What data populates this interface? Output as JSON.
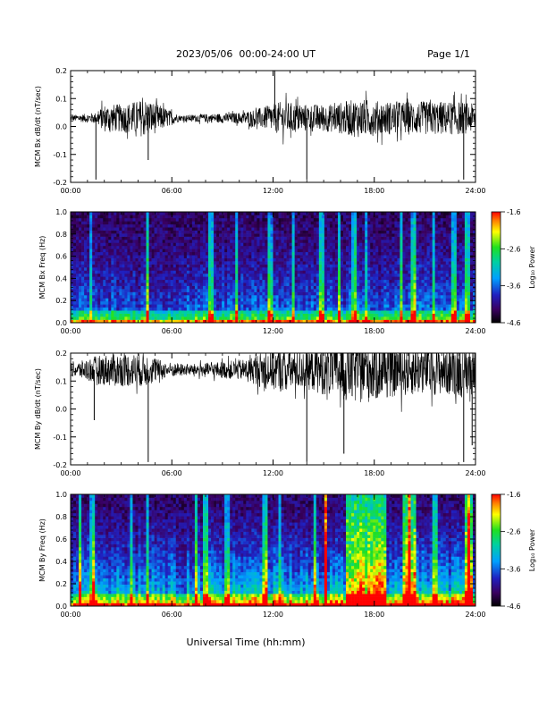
{
  "header": {
    "title": "2023/05/06  00:00-24:00 UT",
    "page": "Page 1/1"
  },
  "xlabel": "Universal Time (hh:mm)",
  "chart_data": [
    {
      "type": "line",
      "ylabel": "MCM Bx dB/dt (nT/sec)",
      "ylim": [
        -0.2,
        0.2
      ],
      "yticks": [
        "0.2",
        "0.1",
        "0.0",
        "-0.1",
        "-0.2"
      ],
      "xticks": [
        "00:00",
        "06:00",
        "12:00",
        "18:00",
        "24:00"
      ],
      "xlim_hours": [
        0,
        24
      ],
      "baseline": 0.03,
      "envelope": {
        "hours": [
          0,
          1.5,
          2.0,
          3.0,
          4.5,
          5.5,
          6.5,
          8.0,
          10.0,
          11.5,
          12.5,
          14.0,
          15.5,
          17.0,
          18.5,
          20.0,
          21.5,
          23.0,
          24.0
        ],
        "amplitude": [
          0.01,
          0.02,
          0.05,
          0.05,
          0.07,
          0.04,
          0.01,
          0.015,
          0.02,
          0.04,
          0.06,
          0.05,
          0.05,
          0.07,
          0.06,
          0.06,
          0.06,
          0.06,
          0.05
        ]
      },
      "spikes": [
        {
          "hour": 1.5,
          "value": -0.19
        },
        {
          "hour": 4.6,
          "value": -0.12
        },
        {
          "hour": 12.1,
          "value": 0.21
        },
        {
          "hour": 14.0,
          "value": -0.19
        },
        {
          "hour": 23.3,
          "value": -0.19
        }
      ]
    },
    {
      "type": "heatmap",
      "ylabel": "MCM Bx Freq (Hz)",
      "ylim": [
        0.0,
        1.0
      ],
      "yticks": [
        "1.0",
        "0.8",
        "0.6",
        "0.4",
        "0.2",
        "0.0"
      ],
      "xticks": [
        "00:00",
        "06:00",
        "12:00",
        "18:00",
        "24:00"
      ],
      "colorbar": {
        "label": "Log₁₀ Power",
        "ticks": [
          "-1.6",
          "-2.6",
          "-3.6",
          "-4.6"
        ],
        "range": [
          -4.6,
          -1.6
        ]
      },
      "bright_bands_hours": [
        1.2,
        4.6,
        8.3,
        9.8,
        11.8,
        13.2,
        14.9,
        15.9,
        16.8,
        17.5,
        19.6,
        20.3,
        21.5,
        22.7,
        23.5
      ],
      "activity_level": 0.35
    },
    {
      "type": "line",
      "ylabel": "MCM By dB/dt (nT/sec)",
      "ylim": [
        -0.2,
        0.2
      ],
      "yticks": [
        "0.2",
        "0.1",
        "0.0",
        "-0.1",
        "-0.2"
      ],
      "xticks": [
        "00:00",
        "06:00",
        "12:00",
        "18:00",
        "24:00"
      ],
      "xlim_hours": [
        0,
        24
      ],
      "baseline": 0.14,
      "envelope": {
        "hours": [
          0,
          1.5,
          2.5,
          4.5,
          5.5,
          7.0,
          9.0,
          10.5,
          11.5,
          12.5,
          14.0,
          15.5,
          16.5,
          17.5,
          19.0,
          20.5,
          22.0,
          23.5,
          24.0
        ],
        "amplitude": [
          0.02,
          0.05,
          0.06,
          0.06,
          0.03,
          0.02,
          0.03,
          0.04,
          0.07,
          0.08,
          0.07,
          0.1,
          0.12,
          0.12,
          0.1,
          0.09,
          0.09,
          0.1,
          0.08
        ]
      },
      "spikes": [
        {
          "hour": 1.4,
          "value": -0.04
        },
        {
          "hour": 4.6,
          "value": -0.19
        },
        {
          "hour": 14.0,
          "value": -0.19
        },
        {
          "hour": 16.2,
          "value": -0.16
        },
        {
          "hour": 23.3,
          "value": -0.19
        },
        {
          "hour": 23.8,
          "value": -0.13
        }
      ]
    },
    {
      "type": "heatmap",
      "ylabel": "MCM By Freq (Hz)",
      "ylim": [
        0.0,
        1.0
      ],
      "yticks": [
        "1.0",
        "0.8",
        "0.6",
        "0.4",
        "0.2",
        "0.0"
      ],
      "xticks": [
        "00:00",
        "06:00",
        "12:00",
        "18:00",
        "24:00"
      ],
      "colorbar": {
        "label": "Log₁₀ Power",
        "ticks": [
          "-1.6",
          "-2.6",
          "-3.6",
          "-4.6"
        ],
        "range": [
          -4.6,
          -1.6
        ]
      },
      "bright_bands_hours": [
        0.6,
        1.3,
        3.6,
        4.6,
        7.4,
        8.0,
        9.3,
        11.5,
        12.4,
        14.5,
        15.1,
        20.1,
        21.6,
        23.6
      ],
      "hot_regions_hours": [
        [
          15.0,
          15.15
        ],
        [
          16.3,
          18.7
        ],
        [
          19.7,
          20.4
        ],
        [
          23.4,
          23.8
        ]
      ],
      "activity_level": 0.6
    }
  ]
}
